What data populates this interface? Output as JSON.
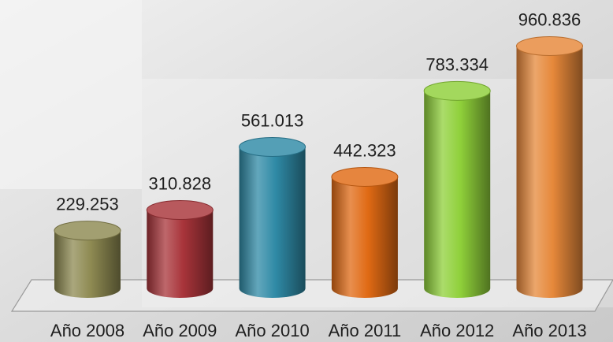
{
  "chart_data": {
    "type": "bar",
    "shape": "cylinder",
    "three_d": true,
    "categories": [
      "Año 2008",
      "Año 2009",
      "Año 2010",
      "Año 2011",
      "Año 2012",
      "Año 2013"
    ],
    "values": [
      229.253,
      310.828,
      561.013,
      442.323,
      783.334,
      960.836
    ],
    "value_labels": [
      "229.253",
      "310.828",
      "561.013",
      "442.323",
      "783.334",
      "960.836"
    ],
    "colors": [
      "#8e8a52",
      "#a8343a",
      "#2f8aa6",
      "#e06a14",
      "#8fd03a",
      "#e6883a"
    ],
    "ylim": [
      0,
      1000
    ],
    "title": "",
    "xlabel": "",
    "ylabel": "",
    "grid": false,
    "legend": "none"
  }
}
